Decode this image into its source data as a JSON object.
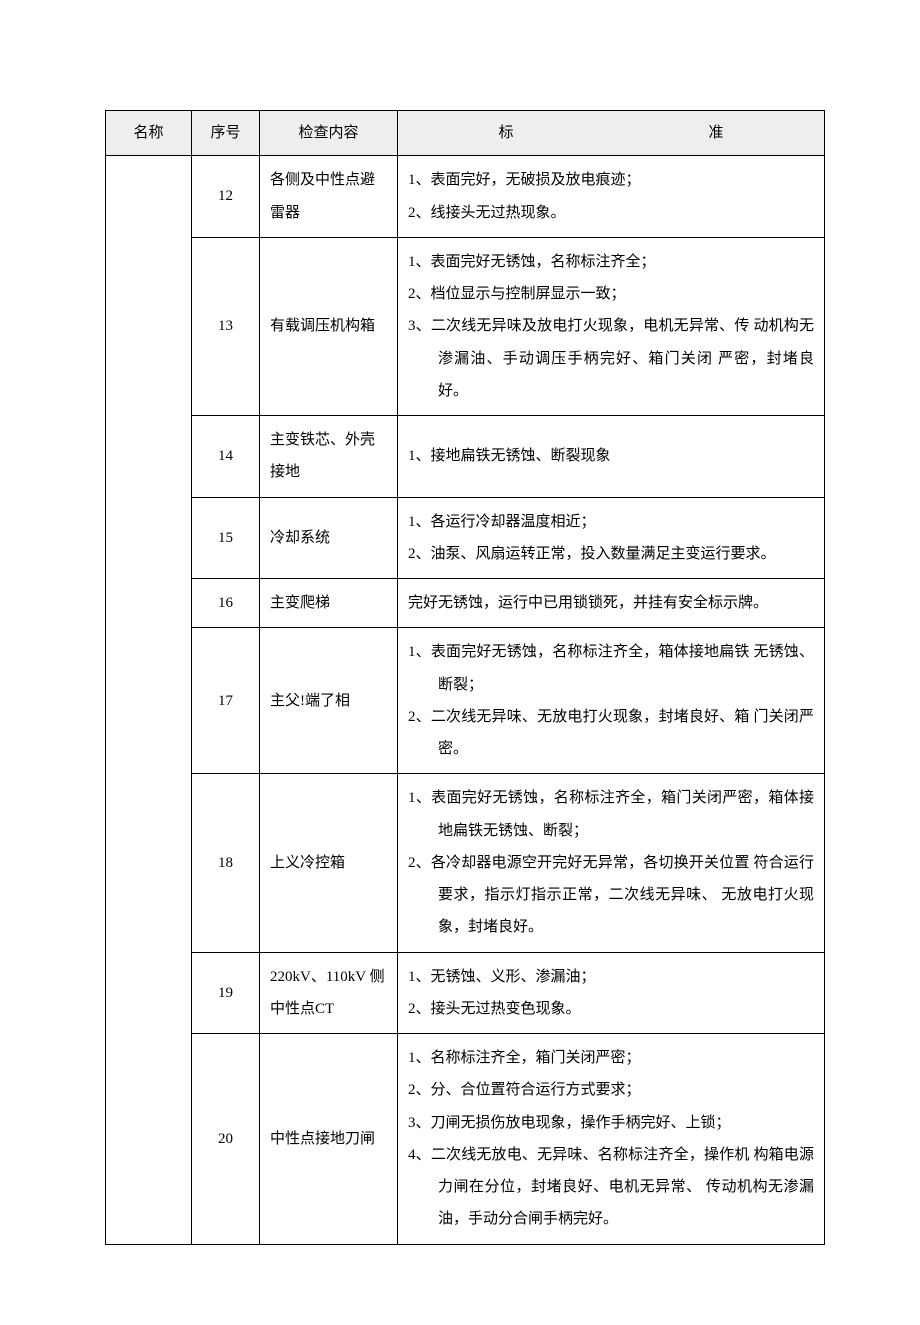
{
  "headers": {
    "name": "名称",
    "seq": "序号",
    "content": "检查内容",
    "std_left": "标",
    "std_right": "准"
  },
  "rows": [
    {
      "seq": "12",
      "content": "各侧及中性点避雷器",
      "std": [
        "1、表面完好，无破损及放电痕迹；",
        "2、线接头无过热现象。"
      ]
    },
    {
      "seq": "13",
      "content": "有载调压机构箱",
      "std": [
        "1、表面完好无锈蚀，名称标注齐全；",
        "2、档位显示与控制屏显示一致；",
        "3、二次线无异味及放电打火现象，电机无异常、传 动机构无渗漏油、手动调压手柄完好、箱门关闭 严密，封堵良好。"
      ]
    },
    {
      "seq": "14",
      "content": "主变铁芯、外壳接地",
      "std": [
        "1、接地扁铁无锈蚀、断裂现象"
      ]
    },
    {
      "seq": "15",
      "content": "冷却系统",
      "std": [
        "1、各运行冷却器温度相近；",
        "2、油泵、风扇运转正常，投入数量满足主变运行要求。"
      ]
    },
    {
      "seq": "16",
      "content": "主变爬梯",
      "std_plain": "完好无锈蚀，运行中已用锁锁死，并挂有安全标示牌。"
    },
    {
      "seq": "17",
      "content": "主父!端了相",
      "std": [
        "1、表面完好无锈蚀，名称标注齐全，箱体接地扁铁 无锈蚀、断裂；",
        "2、二次线无异味、无放电打火现象，封堵良好、箱 门关闭严密。"
      ]
    },
    {
      "seq": "18",
      "content": "上义冷控箱",
      "std": [
        "1、表面完好无锈蚀，名称标注齐全，箱门关闭严密，箱体接地扁铁无锈蚀、断裂；",
        "2、各冷却器电源空开完好无异常，各切换开关位置 符合运行要求，指示灯指示正常，二次线无异味、 无放电打火现象，封堵良好。"
      ]
    },
    {
      "seq": "19",
      "content": "220kV、110kV 侧中性点CT",
      "std": [
        "1、无锈蚀、义形、渗漏油；",
        "2、接头无过热变色现象。"
      ]
    },
    {
      "seq": "20",
      "content": "中性点接地刀闸",
      "std": [
        "1、名称标注齐全，箱门关闭严密；",
        "2、分、合位置符合运行方式要求；",
        "3、刀闸无损伤放电现象，操作手柄完好、上锁；",
        "4、二次线无放电、无异味、名称标注齐全，操作机 构箱电源力闸在分位，封堵良好、电机无异常、 传动机构无渗漏油，手动分合闸手柄完好。"
      ]
    }
  ]
}
